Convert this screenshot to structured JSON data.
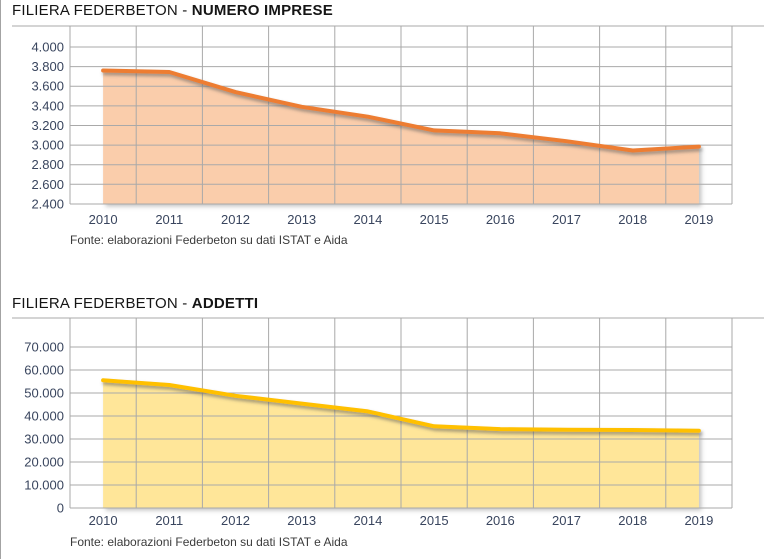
{
  "page": {
    "background": "#ffffff",
    "grid_color": "#a9a9a9",
    "axis_label_color": "#39455E"
  },
  "chart_data": [
    {
      "type": "area",
      "title_prefix": "FILIERA FEDERBETON - ",
      "title_bold": "NUMERO IMPRESE",
      "categories": [
        "2010",
        "2011",
        "2012",
        "2013",
        "2014",
        "2015",
        "2016",
        "2017",
        "2018",
        "2019"
      ],
      "values": [
        3760,
        3745,
        3540,
        3390,
        3290,
        3150,
        3120,
        3040,
        2945,
        2985
      ],
      "ylim": [
        2400,
        4000
      ],
      "ytick_step": 200,
      "ytick_labels": [
        "4.000",
        "3.800",
        "3.600",
        "3.400",
        "3.200",
        "3.000",
        "2.800",
        "2.600",
        "2.400"
      ],
      "xlabel": "",
      "ylabel": "",
      "grid": true,
      "legend": "none",
      "line_color": "#ED7D31",
      "fill_color": "#FACDAB",
      "source": "Fonte: elaborazioni Federbeton su dati ISTAT e Aida"
    },
    {
      "type": "area",
      "title_prefix": "FILIERA FEDERBETON - ",
      "title_bold": "ADDETTI",
      "categories": [
        "2010",
        "2011",
        "2012",
        "2013",
        "2014",
        "2015",
        "2016",
        "2017",
        "2018",
        "2019"
      ],
      "values": [
        55500,
        53500,
        48800,
        45400,
        42000,
        35500,
        34300,
        34000,
        33900,
        33600
      ],
      "ylim": [
        0,
        70000
      ],
      "ytick_step": 10000,
      "ytick_labels": [
        "70.000",
        "60.000",
        "50.000",
        "40.000",
        "30.000",
        "20.000",
        "10.000",
        "0"
      ],
      "xlabel": "",
      "ylabel": "",
      "grid": true,
      "legend": "none",
      "line_color": "#FFC000",
      "fill_color": "#FFE699",
      "source": "Fonte: elaborazioni Federbeton su dati ISTAT e Aida"
    }
  ]
}
